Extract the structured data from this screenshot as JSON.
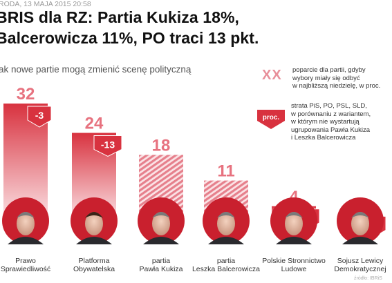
{
  "dateline": "RODA, 13 MAJA 2015 20:58",
  "headline": {
    "line1": "BRIS dla RZ: Partia Kukiza 18%,",
    "line2": "Balcerowicza 11%, PO traci 13 pkt."
  },
  "chart_data": {
    "type": "bar",
    "title": "ak nowe partie mogą zmienić scenę polityczną",
    "categories": [
      "Prawo Sprawiedliwość",
      "Platforma Obywatelska",
      "partia Pawła Kukiza",
      "partia Leszka Balcerowicza",
      "Polskie Stronnictwo Ludowe",
      "Sojusz Lewicy Demokratycznej"
    ],
    "category_lines": [
      [
        "Prawo",
        "Sprawiedliwość"
      ],
      [
        "Platforma",
        "Obywatelska"
      ],
      [
        "partia",
        "Pawła Kukiza"
      ],
      [
        "partia",
        "Leszka Balcerowicza"
      ],
      [
        "Polskie Stronnictwo",
        "Ludowe"
      ],
      [
        "Sojusz Lewicy",
        "Demokratycznej"
      ]
    ],
    "series": [
      {
        "name": "poparcie dla partii",
        "values": [
          32,
          24,
          18,
          11,
          4,
          2
        ]
      },
      {
        "name": "strata",
        "values": [
          -3,
          -13,
          null,
          null,
          -1,
          -3
        ]
      }
    ],
    "change_labels": [
      "-3",
      "-13",
      "",
      "",
      "-1",
      "-3"
    ],
    "new_party": [
      false,
      false,
      true,
      true,
      false,
      false
    ],
    "ylim": [
      0,
      32
    ],
    "xlabel": "",
    "ylabel": "",
    "legend": {
      "marker_label": "XX",
      "marker_text": [
        "poparcie dla partii, gdyby",
        "wybory miały się odbyć",
        "w najbliższą niedzielę, w proc."
      ],
      "arrow_label": "proc.",
      "arrow_text": [
        "strata PiS, PO, PSL, SLD,",
        "w porównaniu z wariantem,",
        "w którym nie wystartują",
        "ugrupowania Pawła Kukiza",
        "i Leszka Balcerowicza"
      ],
      "placement": "top-right"
    },
    "credit": "źródło: IBRiS",
    "colors": {
      "bar_top": "#d8323f",
      "bar_bottom": "#fbe3e6",
      "hatch": "#e6808c",
      "arrow": "#d8323f",
      "circle": "#c9202e"
    }
  }
}
